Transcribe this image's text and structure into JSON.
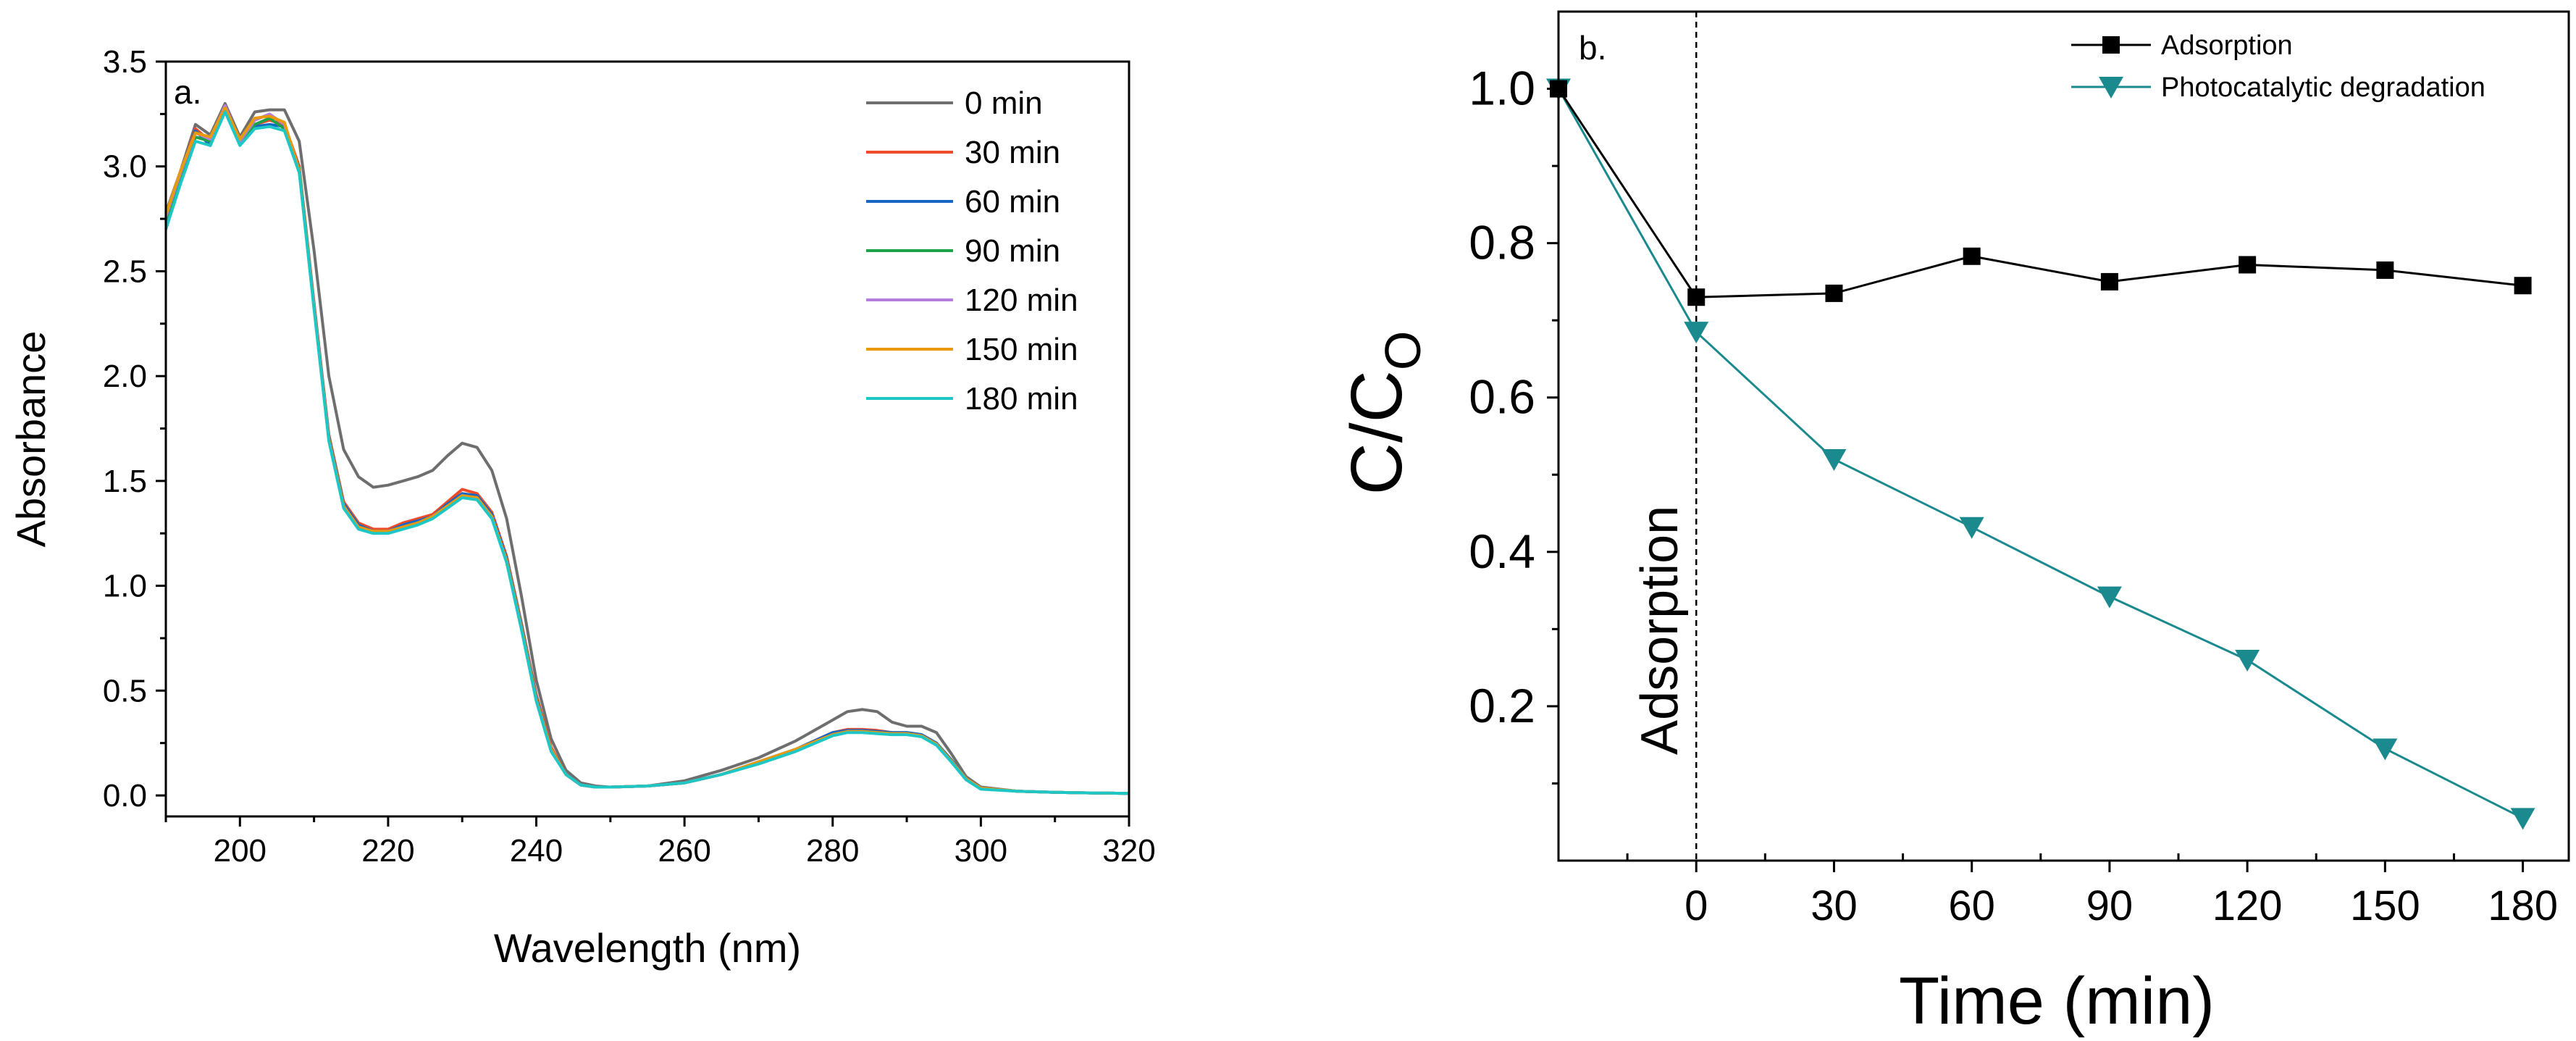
{
  "chart_data": [
    {
      "type": "line",
      "panel_label": "a.",
      "xlabel": "Wavelength (nm)",
      "ylabel": "Absorbance",
      "xlim": [
        190,
        320
      ],
      "ylim": [
        -0.1,
        3.5
      ],
      "x_ticks": [
        "200",
        "220",
        "240",
        "260",
        "280",
        "300",
        "320"
      ],
      "y_ticks": [
        "0.0",
        "0.5",
        "1.0",
        "1.5",
        "2.0",
        "2.5",
        "3.0",
        "3.5"
      ],
      "legend_position": "top-right",
      "x": [
        190,
        192,
        194,
        196,
        198,
        200,
        202,
        204,
        206,
        208,
        210,
        212,
        214,
        216,
        218,
        220,
        222,
        224,
        226,
        228,
        230,
        232,
        234,
        236,
        238,
        240,
        242,
        244,
        246,
        248,
        250,
        255,
        260,
        265,
        270,
        275,
        280,
        282,
        284,
        286,
        288,
        290,
        292,
        294,
        296,
        298,
        300,
        305,
        310,
        315,
        320
      ],
      "series": [
        {
          "name": "0 min",
          "color": "#6e6e6e",
          "values": [
            2.78,
            2.98,
            3.2,
            3.15,
            3.3,
            3.14,
            3.26,
            3.27,
            3.27,
            3.12,
            2.6,
            2.0,
            1.65,
            1.52,
            1.47,
            1.48,
            1.5,
            1.52,
            1.55,
            1.62,
            1.68,
            1.66,
            1.55,
            1.32,
            0.95,
            0.55,
            0.27,
            0.12,
            0.06,
            0.045,
            0.04,
            0.045,
            0.07,
            0.12,
            0.18,
            0.26,
            0.36,
            0.4,
            0.41,
            0.4,
            0.35,
            0.33,
            0.33,
            0.3,
            0.2,
            0.09,
            0.04,
            0.02,
            0.015,
            0.012,
            0.01
          ]
        },
        {
          "name": "30 min",
          "color": "#ee4b2b",
          "values": [
            2.75,
            2.96,
            3.18,
            3.12,
            3.27,
            3.13,
            3.2,
            3.22,
            3.2,
            3.0,
            2.35,
            1.72,
            1.4,
            1.3,
            1.27,
            1.27,
            1.3,
            1.32,
            1.34,
            1.4,
            1.46,
            1.44,
            1.35,
            1.14,
            0.82,
            0.48,
            0.23,
            0.1,
            0.05,
            0.04,
            0.04,
            0.045,
            0.06,
            0.1,
            0.16,
            0.22,
            0.3,
            0.315,
            0.315,
            0.31,
            0.3,
            0.3,
            0.29,
            0.25,
            0.17,
            0.08,
            0.035,
            0.02,
            0.015,
            0.012,
            0.01
          ]
        },
        {
          "name": "60 min",
          "color": "#1666c4",
          "values": [
            2.74,
            2.95,
            3.17,
            3.1,
            3.27,
            3.12,
            3.19,
            3.2,
            3.19,
            2.99,
            2.34,
            1.71,
            1.39,
            1.29,
            1.26,
            1.26,
            1.29,
            1.31,
            1.33,
            1.39,
            1.44,
            1.43,
            1.34,
            1.13,
            0.81,
            0.47,
            0.22,
            0.1,
            0.05,
            0.04,
            0.04,
            0.045,
            0.06,
            0.1,
            0.16,
            0.22,
            0.3,
            0.31,
            0.31,
            0.305,
            0.3,
            0.3,
            0.29,
            0.25,
            0.17,
            0.08,
            0.035,
            0.02,
            0.015,
            0.012,
            0.01
          ]
        },
        {
          "name": "90 min",
          "color": "#1fa34a",
          "values": [
            2.73,
            2.95,
            3.14,
            3.12,
            3.28,
            3.11,
            3.2,
            3.23,
            3.18,
            2.99,
            2.33,
            1.7,
            1.38,
            1.28,
            1.26,
            1.26,
            1.28,
            1.3,
            1.33,
            1.38,
            1.43,
            1.42,
            1.33,
            1.12,
            0.8,
            0.46,
            0.22,
            0.1,
            0.05,
            0.04,
            0.04,
            0.045,
            0.06,
            0.1,
            0.16,
            0.22,
            0.29,
            0.305,
            0.305,
            0.3,
            0.295,
            0.295,
            0.285,
            0.245,
            0.165,
            0.08,
            0.035,
            0.02,
            0.015,
            0.012,
            0.01
          ]
        },
        {
          "name": "120 min",
          "color": "#b57edc",
          "values": [
            2.76,
            2.97,
            3.16,
            3.13,
            3.29,
            3.12,
            3.22,
            3.25,
            3.2,
            2.98,
            2.33,
            1.7,
            1.38,
            1.28,
            1.26,
            1.26,
            1.28,
            1.3,
            1.33,
            1.38,
            1.43,
            1.42,
            1.33,
            1.12,
            0.8,
            0.46,
            0.22,
            0.1,
            0.05,
            0.04,
            0.04,
            0.045,
            0.06,
            0.1,
            0.16,
            0.22,
            0.29,
            0.305,
            0.305,
            0.3,
            0.295,
            0.295,
            0.285,
            0.245,
            0.165,
            0.08,
            0.035,
            0.02,
            0.015,
            0.012,
            0.01
          ]
        },
        {
          "name": "150 min",
          "color": "#e89a0c",
          "values": [
            2.77,
            2.98,
            3.16,
            3.14,
            3.28,
            3.13,
            3.23,
            3.24,
            3.21,
            2.98,
            2.33,
            1.7,
            1.38,
            1.28,
            1.26,
            1.26,
            1.28,
            1.3,
            1.33,
            1.38,
            1.43,
            1.42,
            1.33,
            1.12,
            0.8,
            0.46,
            0.22,
            0.1,
            0.05,
            0.04,
            0.04,
            0.045,
            0.06,
            0.1,
            0.16,
            0.22,
            0.29,
            0.305,
            0.305,
            0.3,
            0.295,
            0.295,
            0.285,
            0.245,
            0.165,
            0.08,
            0.035,
            0.02,
            0.015,
            0.012,
            0.01
          ]
        },
        {
          "name": "180 min",
          "color": "#1ec6c6",
          "values": [
            2.7,
            2.92,
            3.12,
            3.1,
            3.26,
            3.1,
            3.18,
            3.19,
            3.17,
            2.97,
            2.32,
            1.69,
            1.37,
            1.27,
            1.25,
            1.25,
            1.27,
            1.29,
            1.32,
            1.37,
            1.42,
            1.41,
            1.32,
            1.11,
            0.79,
            0.45,
            0.21,
            0.1,
            0.05,
            0.04,
            0.04,
            0.045,
            0.06,
            0.1,
            0.15,
            0.21,
            0.285,
            0.3,
            0.3,
            0.295,
            0.29,
            0.29,
            0.28,
            0.24,
            0.16,
            0.075,
            0.03,
            0.02,
            0.015,
            0.012,
            0.01
          ]
        }
      ]
    },
    {
      "type": "line",
      "panel_label": "b.",
      "xlabel": "Time (min)",
      "ylabel_main": "C/C",
      "ylabel_sub": "O",
      "xlim": [
        -30,
        190
      ],
      "ylim": [
        0.0,
        1.1
      ],
      "x_ticks": [
        "0",
        "30",
        "60",
        "90",
        "120",
        "150",
        "180"
      ],
      "y_ticks": [
        "0.2",
        "0.4",
        "0.6",
        "0.8",
        "1.0"
      ],
      "annotation": "Adsorption",
      "annotation_line_x": 0,
      "legend_position": "top-right",
      "series": [
        {
          "name": "Adsorption",
          "color": "#000000",
          "marker": "square",
          "x": [
            -30,
            0,
            30,
            60,
            90,
            120,
            150,
            180
          ],
          "values": [
            1.0,
            0.73,
            0.735,
            0.783,
            0.75,
            0.772,
            0.765,
            0.745
          ]
        },
        {
          "name": "Photocatalytic degradation",
          "color": "#1a8a8e",
          "marker": "triangle-down",
          "x": [
            -30,
            0,
            30,
            60,
            90,
            120,
            150,
            180
          ],
          "values": [
            1.0,
            0.685,
            0.52,
            0.432,
            0.342,
            0.26,
            0.145,
            0.055
          ]
        }
      ]
    }
  ]
}
